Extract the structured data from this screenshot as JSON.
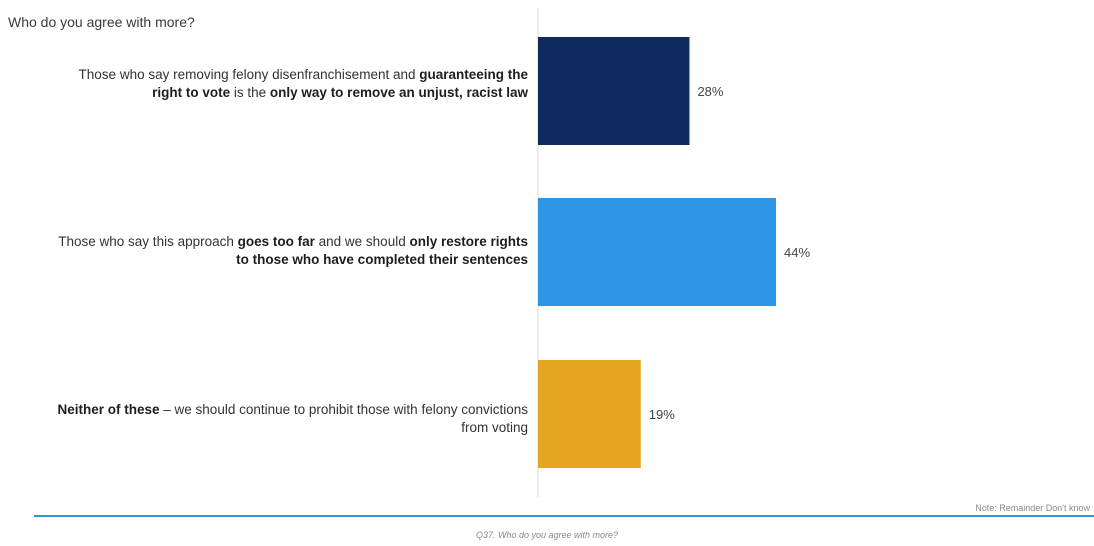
{
  "question": "Who do you agree with more?",
  "note": "Note: Remainder Don't know",
  "footer": "Q37. Who do you agree with more?",
  "colors": {
    "bar1": "#0e2a5e",
    "bar2": "#2f95e6",
    "bar3": "#e4a521",
    "axis": "#d7d7d7",
    "rule": "#2f95d3"
  },
  "chart_data": {
    "type": "bar",
    "orientation": "horizontal",
    "categories": [
      "Those who say removing felony disenfranchisement and guaranteeing the right to vote is the only way to remove an unjust, racist law",
      "Those who say this approach goes too far and we should only restore rights to those who have completed their sentences",
      "Neither of these – we should continue to prohibit those with felony convictions from voting"
    ],
    "category_parts": [
      [
        {
          "t": "Those who say removing felony disenfranchisement and ",
          "b": false
        },
        {
          "t": "guaranteeing the right to vote",
          "b": true
        },
        {
          "t": " is the ",
          "b": false
        },
        {
          "t": "only way to remove an unjust, racist law",
          "b": true
        }
      ],
      [
        {
          "t": "Those who say this approach ",
          "b": false
        },
        {
          "t": "goes too far",
          "b": true
        },
        {
          "t": " and we should ",
          "b": false
        },
        {
          "t": "only restore rights to those who have completed their sentences",
          "b": true
        }
      ],
      [
        {
          "t": "Neither of these",
          "b": true
        },
        {
          "t": " – we should continue to prohibit those with felony convictions from voting",
          "b": false
        }
      ]
    ],
    "values": [
      28,
      44,
      19
    ],
    "value_labels": [
      "28%",
      "44%",
      "19%"
    ],
    "unit": "%",
    "xlim": [
      0,
      100
    ],
    "grid": false,
    "legend": "none"
  }
}
